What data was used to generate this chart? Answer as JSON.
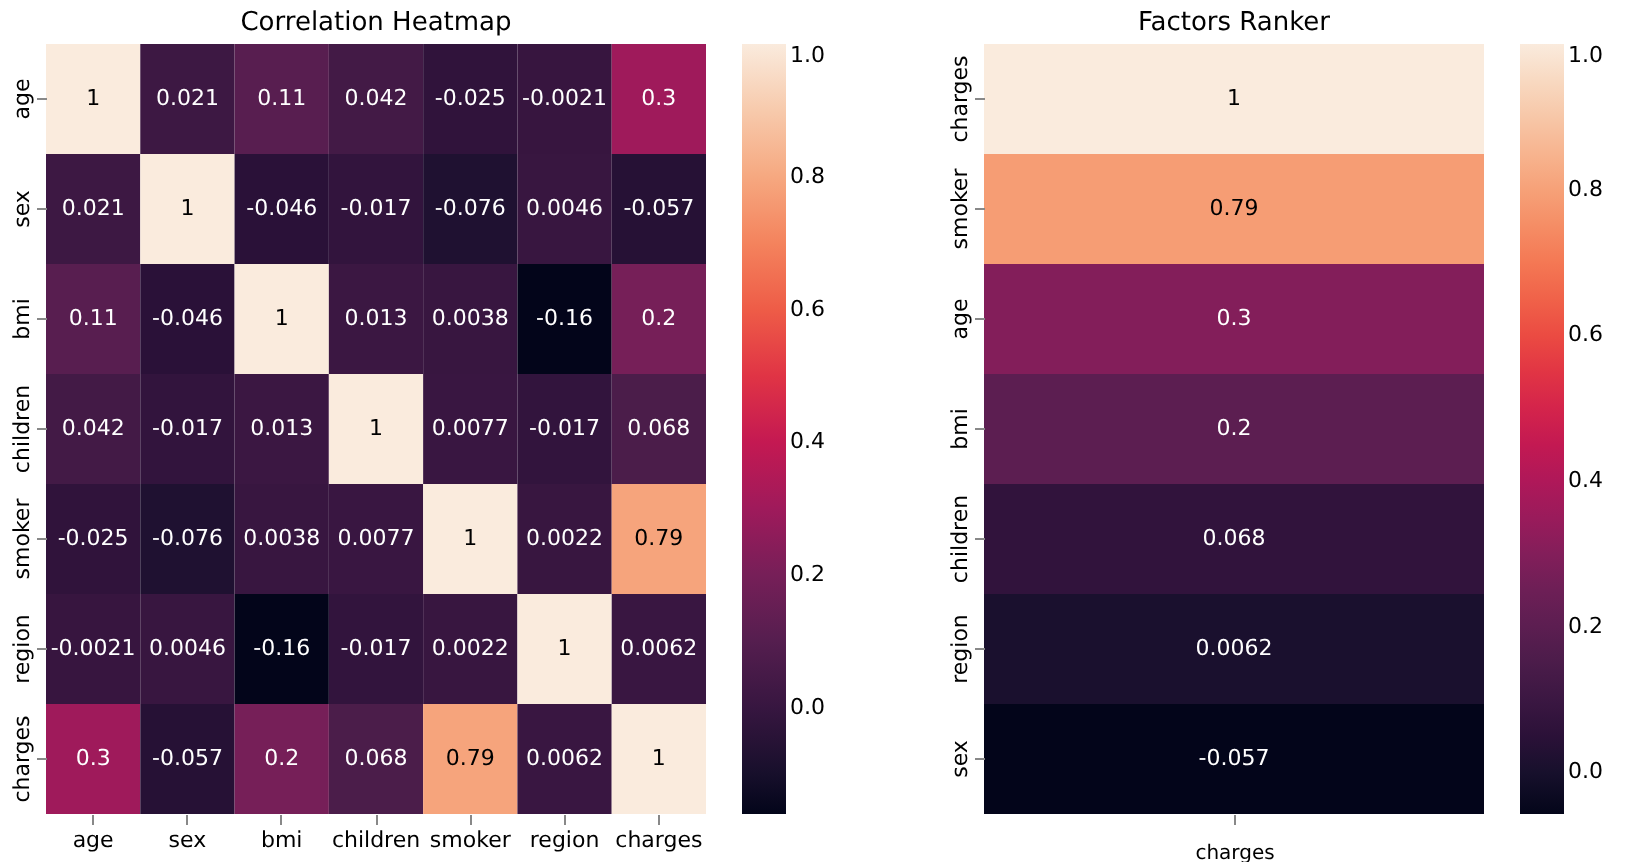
{
  "chart_data": [
    {
      "type": "heatmap",
      "title": "Correlation Heatmap",
      "categories": [
        "age",
        "sex",
        "bmi",
        "children",
        "smoker",
        "region",
        "charges"
      ],
      "y_categories": [
        "age",
        "sex",
        "bmi",
        "children",
        "smoker",
        "region",
        "charges"
      ],
      "cells": [
        [
          1,
          0.021,
          0.11,
          0.042,
          -0.025,
          -0.0021,
          0.3
        ],
        [
          0.021,
          1,
          -0.046,
          -0.017,
          -0.076,
          0.0046,
          -0.057
        ],
        [
          0.11,
          -0.046,
          1,
          0.013,
          0.0038,
          -0.16,
          0.2
        ],
        [
          0.042,
          -0.017,
          0.013,
          1,
          0.0077,
          -0.017,
          0.068
        ],
        [
          -0.025,
          -0.076,
          0.0038,
          0.0077,
          1,
          0.0022,
          0.79
        ],
        [
          -0.0021,
          0.0046,
          -0.16,
          -0.017,
          0.0022,
          1,
          0.0062
        ],
        [
          0.3,
          -0.057,
          0.2,
          0.068,
          0.79,
          0.0062,
          1
        ]
      ],
      "clim": [
        -0.16,
        1
      ],
      "cticks": [
        {
          "value": 0,
          "label": "0.0"
        },
        {
          "value": 0.2,
          "label": "0.2"
        },
        {
          "value": 0.4,
          "label": "0.4"
        },
        {
          "value": 0.6,
          "label": "0.6"
        },
        {
          "value": 0.8,
          "label": "0.8"
        },
        {
          "value": 1,
          "label": "1.0"
        }
      ],
      "data_labels": true
    },
    {
      "type": "heatmap",
      "title": "Factors Ranker",
      "categories": [
        null
      ],
      "xlabel": "charges",
      "y_categories": [
        "charges",
        "smoker",
        "age",
        "bmi",
        "children",
        "region",
        "sex"
      ],
      "cells": [
        [
          1
        ],
        [
          0.79
        ],
        [
          0.3
        ],
        [
          0.2
        ],
        [
          0.068
        ],
        [
          0.0062
        ],
        [
          -0.057
        ]
      ],
      "clim": [
        -0.057,
        1
      ],
      "cticks": [
        {
          "value": 0,
          "label": "0.0"
        },
        {
          "value": 0.2,
          "label": "0.2"
        },
        {
          "value": 0.4,
          "label": "0.4"
        },
        {
          "value": 0.6,
          "label": "0.6"
        },
        {
          "value": 0.8,
          "label": "0.8"
        },
        {
          "value": 1,
          "label": "1.0"
        }
      ],
      "data_labels": true
    }
  ]
}
